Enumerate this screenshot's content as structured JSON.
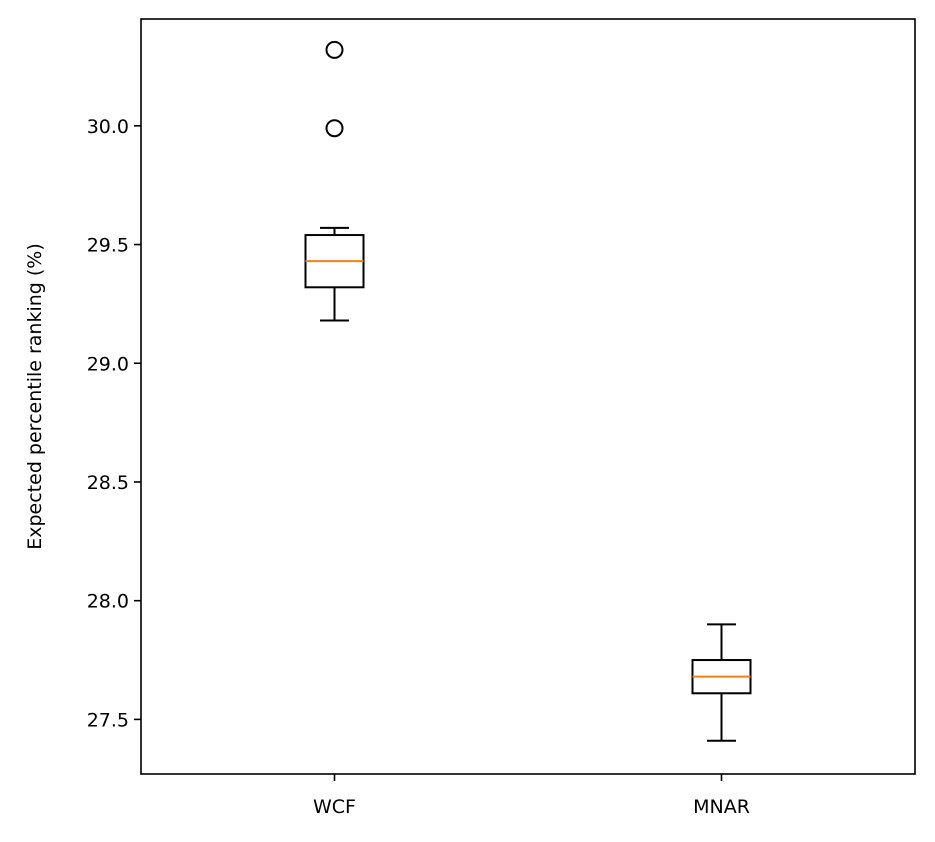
{
  "chart_data": {
    "type": "box",
    "title": "",
    "xlabel": "",
    "ylabel": "Expected percentile ranking (%)",
    "ylim": [
      27.27,
      30.45
    ],
    "grid": false,
    "yticks": [
      "27.5",
      "28.0",
      "28.5",
      "29.0",
      "29.5",
      "30.0"
    ],
    "categories": [
      "WCF",
      "MNAR"
    ],
    "boxes": [
      {
        "category": "WCF",
        "whisker_low": 29.18,
        "q1": 29.32,
        "median": 29.43,
        "q3": 29.54,
        "whisker_high": 29.57,
        "outliers": [
          29.99,
          30.32
        ]
      },
      {
        "category": "MNAR",
        "whisker_low": 27.41,
        "q1": 27.61,
        "median": 27.68,
        "q3": 27.75,
        "whisker_high": 27.9,
        "outliers": []
      }
    ],
    "colors": {
      "box": "#000000",
      "median": "#ff7f0e",
      "axes": "#000000",
      "background": "#ffffff"
    }
  }
}
